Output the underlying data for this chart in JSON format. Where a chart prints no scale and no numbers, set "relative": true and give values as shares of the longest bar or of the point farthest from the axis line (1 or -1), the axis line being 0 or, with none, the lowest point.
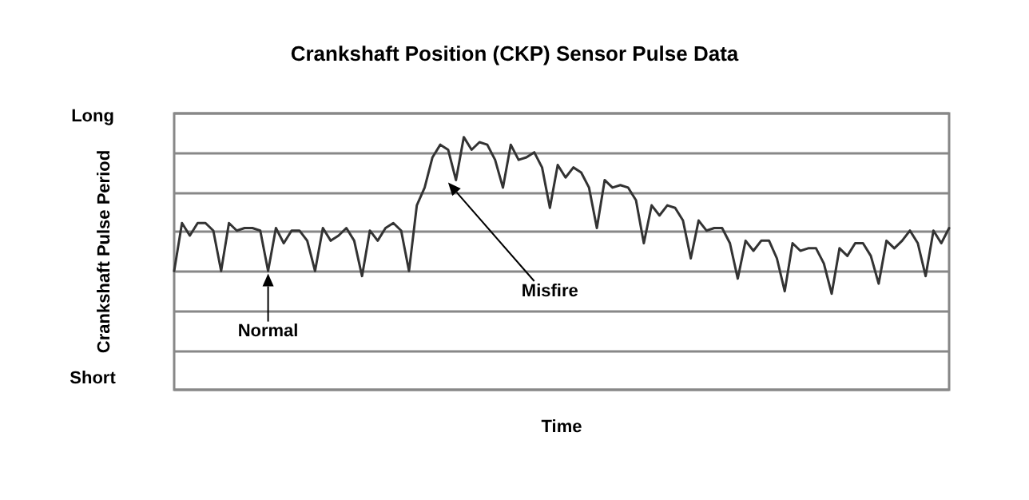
{
  "chart_data": {
    "type": "line",
    "title": "Crankshaft Position (CKP) Sensor Pulse Data",
    "xlabel": "Time",
    "ylabel": "Crankshaft Pulse Period",
    "categories": [
      null,
      null,
      null,
      null,
      null,
      null,
      null,
      null,
      null,
      null,
      null,
      null,
      null,
      null,
      null,
      null,
      null,
      null,
      null,
      null,
      null,
      null,
      null,
      null,
      null,
      null,
      null,
      null,
      null,
      null,
      null,
      null,
      null,
      null,
      null,
      null,
      null,
      null,
      null,
      null,
      null,
      null,
      null,
      null,
      null,
      null,
      null,
      null,
      null,
      null,
      null,
      null,
      null,
      null,
      null,
      null,
      null,
      null,
      null,
      null,
      null,
      null,
      null,
      null,
      null,
      null,
      null,
      null,
      null,
      null,
      null,
      null,
      null,
      null,
      null,
      null,
      null,
      null,
      null,
      null,
      null,
      null,
      null,
      null,
      null,
      null,
      null,
      null,
      null,
      null,
      null,
      null,
      null,
      null,
      null,
      null,
      null,
      null,
      null,
      null
    ],
    "values": [
      0.47,
      0.66,
      0.61,
      0.66,
      0.66,
      0.63,
      0.47,
      0.66,
      0.63,
      0.64,
      0.64,
      0.63,
      0.47,
      0.64,
      0.58,
      0.63,
      0.63,
      0.59,
      0.47,
      0.64,
      0.59,
      0.61,
      0.64,
      0.59,
      0.45,
      0.63,
      0.59,
      0.64,
      0.66,
      0.63,
      0.47,
      0.73,
      0.8,
      0.92,
      0.97,
      0.95,
      0.83,
      1,
      0.95,
      0.98,
      0.97,
      0.91,
      0.8,
      0.97,
      0.91,
      0.92,
      0.94,
      0.88,
      0.72,
      0.89,
      0.84,
      0.88,
      0.86,
      0.8,
      0.64,
      0.83,
      0.8,
      0.81,
      0.8,
      0.75,
      0.58,
      0.73,
      0.69,
      0.73,
      0.72,
      0.67,
      0.52,
      0.67,
      0.63,
      0.64,
      0.64,
      0.58,
      0.44,
      0.59,
      0.55,
      0.59,
      0.59,
      0.52,
      0.39,
      0.58,
      0.55,
      0.56,
      0.56,
      0.5,
      0.38,
      0.56,
      0.53,
      0.58,
      0.58,
      0.53,
      0.42,
      0.59,
      0.56,
      0.59,
      0.63,
      0.58,
      0.45,
      0.63,
      0.58,
      0.64
    ],
    "color": "#333333",
    "relative": true,
    "grid": "y",
    "annotations": [
      "Long",
      "Short",
      "Normal",
      "Misfire"
    ]
  }
}
